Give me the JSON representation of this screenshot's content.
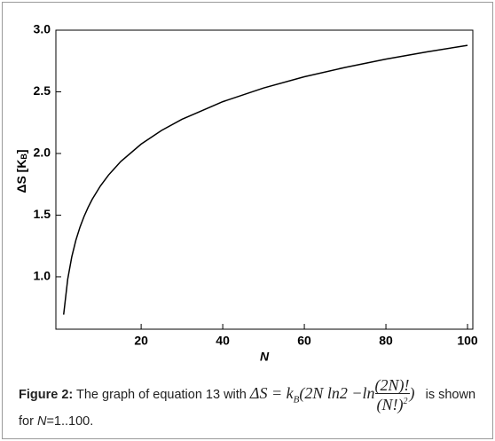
{
  "chart_data": {
    "type": "line",
    "xlabel": "N",
    "ylabel": {
      "main": "ΔS [K",
      "sub": "B",
      "end": "]"
    },
    "x": [
      1,
      2,
      3,
      4,
      5,
      6,
      7,
      8,
      10,
      12,
      15,
      20,
      25,
      30,
      40,
      50,
      60,
      70,
      80,
      90,
      100
    ],
    "series": [
      {
        "color": "#000000",
        "values": [
          0.693,
          0.981,
          1.163,
          1.297,
          1.402,
          1.489,
          1.563,
          1.628,
          1.736,
          1.825,
          1.935,
          2.076,
          2.187,
          2.277,
          2.42,
          2.531,
          2.622,
          2.698,
          2.765,
          2.824,
          2.877
        ]
      }
    ],
    "xlim": [
      -0.9,
      101.3
    ],
    "ylim": [
      0.575,
      3.0
    ],
    "xticks": [
      20,
      40,
      60,
      80,
      100
    ],
    "yticks": [
      {
        "value": 1,
        "label": "1.0"
      },
      1.5,
      {
        "value": 2,
        "label": "2.0"
      },
      2.5,
      {
        "value": 3,
        "label": "3.0"
      }
    ]
  },
  "caption": {
    "label": "Figure 2:",
    "text1": "The graph of equation 13 with",
    "eq_lhs": "ΔS = k",
    "eq_sub": "B",
    "eq_mid": "(2N ln2 −ln",
    "eq_num": "(2N)!",
    "eq_den": "(N!)",
    "eq_exp": "2",
    "eq_end": ")",
    "text2": "is shown for",
    "n": "N",
    "text3": "=1..100."
  }
}
